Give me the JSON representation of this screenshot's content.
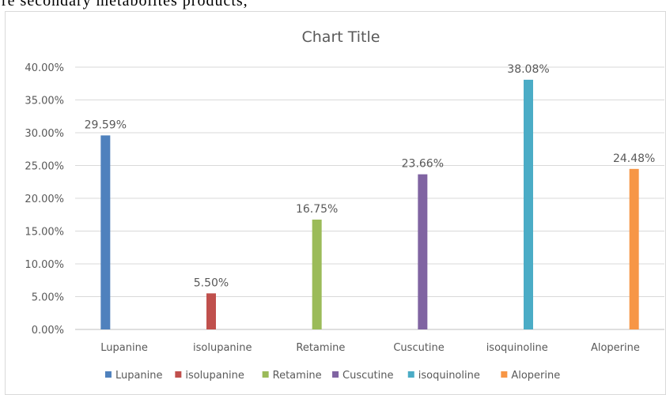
{
  "page_header_text": "re  secondary  metabolites  products,",
  "chart_data": {
    "type": "bar",
    "title": "Chart Title",
    "categories": [
      "Lupanine",
      "isolupanine",
      "Retamine",
      "Cuscutine",
      "isoquinoline",
      "Aloperine"
    ],
    "series": [
      {
        "name": "Lupanine",
        "color": "#4F81BD",
        "values": [
          29.59,
          null,
          null,
          null,
          null,
          null
        ]
      },
      {
        "name": "isolupanine",
        "color": "#C0504D",
        "values": [
          null,
          5.5,
          null,
          null,
          null,
          null
        ]
      },
      {
        "name": "Retamine",
        "color": "#9BBB59",
        "values": [
          null,
          null,
          16.75,
          null,
          null,
          null
        ]
      },
      {
        "name": "Cuscutine",
        "color": "#8064A2",
        "values": [
          null,
          null,
          null,
          23.66,
          null,
          null
        ]
      },
      {
        "name": "isoquinoline",
        "color": "#4BACC6",
        "values": [
          null,
          null,
          null,
          null,
          38.08,
          null
        ]
      },
      {
        "name": "Aloperine",
        "color": "#F79646",
        "values": [
          null,
          null,
          null,
          null,
          null,
          24.48
        ]
      }
    ],
    "data_labels": [
      "29.59%",
      "5.50%",
      "16.75%",
      "23.66%",
      "38.08%",
      "24.48%"
    ],
    "y_tick_labels": [
      "0.00%",
      "5.00%",
      "10.00%",
      "15.00%",
      "20.00%",
      "25.00%",
      "30.00%",
      "35.00%",
      "40.00%"
    ],
    "ylim": [
      0,
      40
    ],
    "ytick_step": 5,
    "grid": true,
    "legend_position": "bottom",
    "xlabel": "",
    "ylabel": ""
  }
}
